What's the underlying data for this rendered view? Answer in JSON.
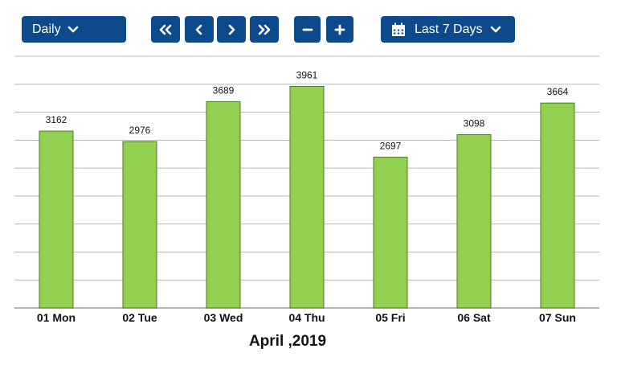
{
  "toolbar": {
    "period_label": "Daily",
    "range_label": "Last 7 Days",
    "icons": {
      "period_caret": "chevron-down-icon",
      "first": "double-chevron-left-icon",
      "prev": "chevron-left-icon",
      "next": "chevron-right-icon",
      "last": "double-chevron-right-icon",
      "zoom_out": "minus-icon",
      "zoom_in": "plus-icon",
      "calendar": "calendar-icon",
      "range_caret": "chevron-down-icon"
    },
    "colors": {
      "button_bg": "#0d4a8c",
      "button_fg": "#ffffff"
    }
  },
  "chart_data": {
    "type": "bar",
    "categories": [
      "01 Mon",
      "02 Tue",
      "03 Wed",
      "04 Thu",
      "05 Fri",
      "06 Sat",
      "07 Sun"
    ],
    "values": [
      3162,
      2976,
      3689,
      3961,
      2697,
      3098,
      3664
    ],
    "data_labels": [
      "3162",
      "2976",
      "3689",
      "3961",
      "2697",
      "3098",
      "3664"
    ],
    "title": "",
    "xlabel": "April ,2019",
    "ylabel": "",
    "ylim": [
      0,
      4500
    ],
    "grid": true,
    "legend": "none",
    "colors": {
      "bar_fill": "#92d050",
      "bar_stroke": "#4a7a2a",
      "grid": "#b8b8b8"
    }
  }
}
